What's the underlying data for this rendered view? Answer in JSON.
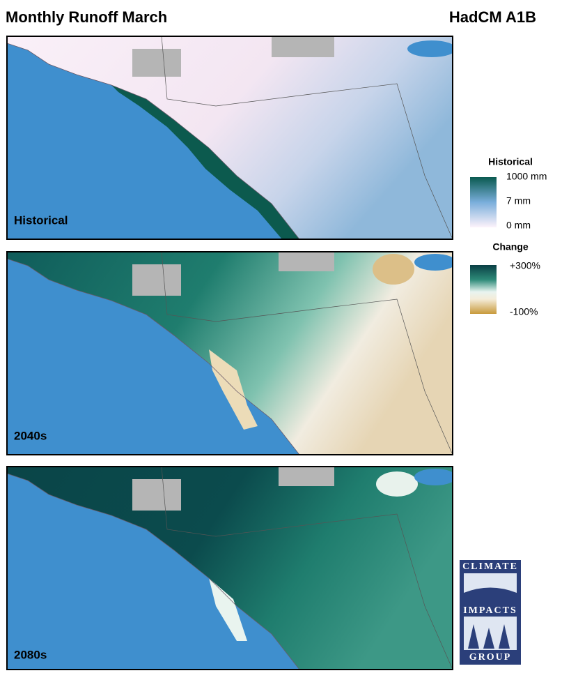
{
  "header": {
    "title": "Monthly Runoff March",
    "model": "HadCM A1B"
  },
  "panels": [
    {
      "label": "Historical"
    },
    {
      "label": "2040s"
    },
    {
      "label": "2080s"
    }
  ],
  "legends": {
    "historical": {
      "title": "Historical",
      "labels": [
        "1000 mm",
        "7 mm",
        "0 mm"
      ]
    },
    "change": {
      "title": "Change",
      "labels": [
        "+300%",
        "-100%"
      ]
    }
  },
  "logo": {
    "top": "CLIMATE",
    "middle": "IMPACTS",
    "bottom": "GROUP"
  }
}
